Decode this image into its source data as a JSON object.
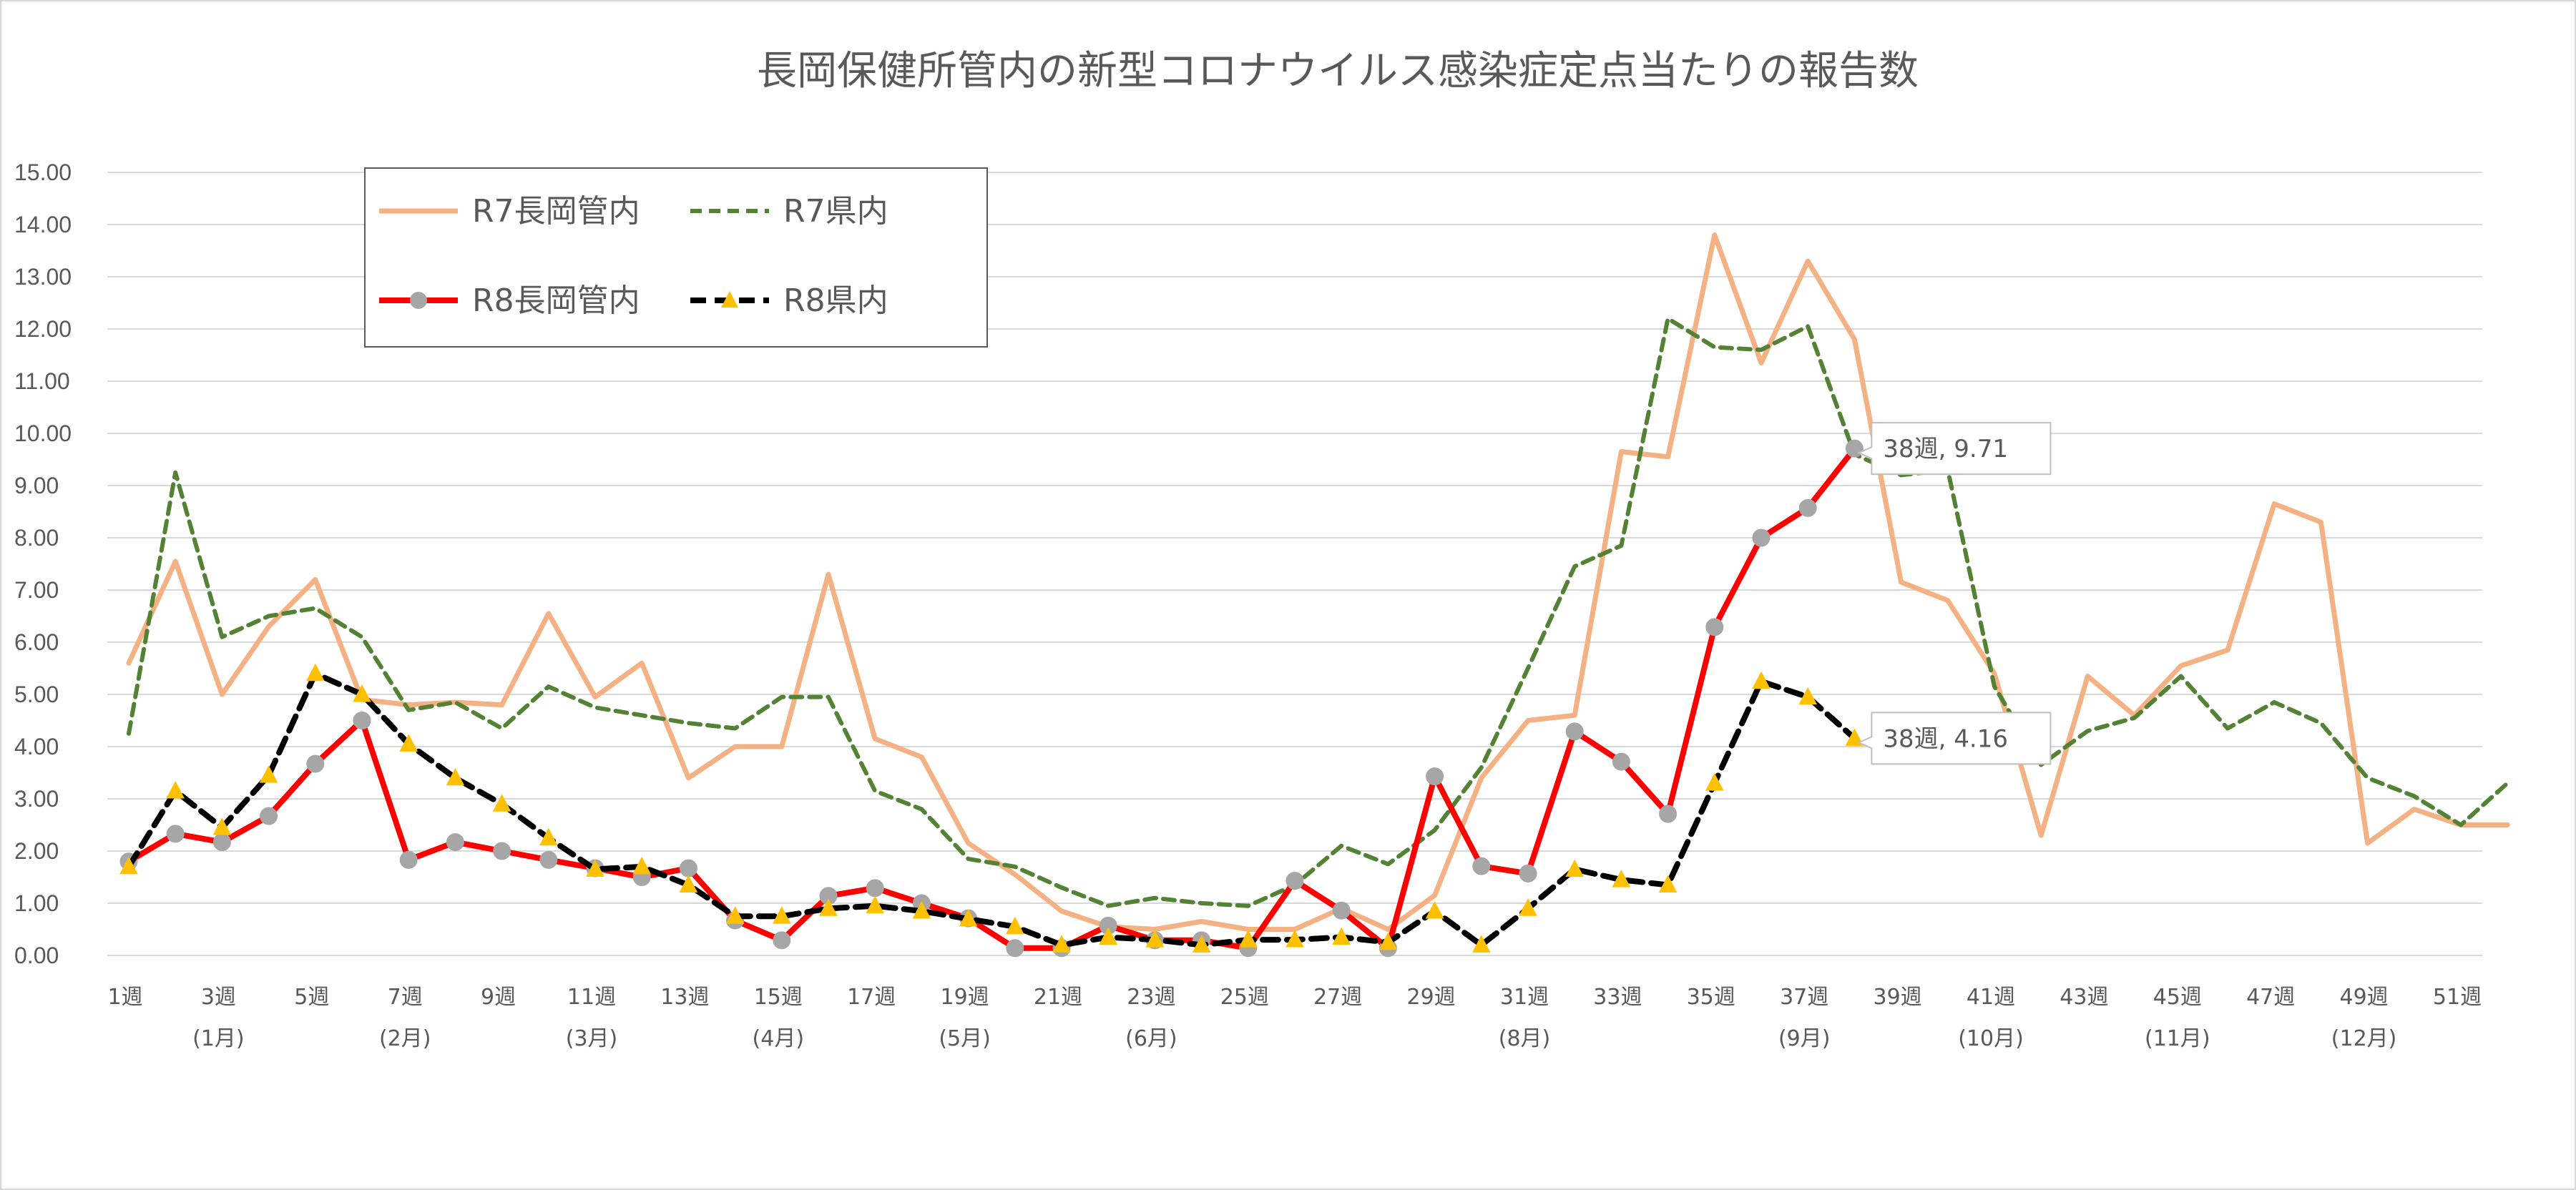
{
  "chart_data": {
    "type": "line",
    "title": "長岡保健所管内の新型コロナウイルス感染症定点当たりの報告数",
    "xlabel": "",
    "ylabel": "",
    "ylim": [
      0,
      15
    ],
    "y_ticks": [
      "0.00",
      "1.00",
      "2.00",
      "3.00",
      "4.00",
      "5.00",
      "6.00",
      "7.00",
      "8.00",
      "9.00",
      "10.00",
      "11.00",
      "12.00",
      "13.00",
      "14.00",
      "15.00"
    ],
    "x_weeks": [
      1,
      2,
      3,
      4,
      5,
      6,
      7,
      8,
      9,
      10,
      11,
      12,
      13,
      14,
      15,
      16,
      17,
      18,
      19,
      20,
      21,
      22,
      23,
      24,
      25,
      26,
      27,
      28,
      29,
      30,
      31,
      32,
      33,
      34,
      35,
      36,
      37,
      38,
      39,
      40,
      41,
      42,
      43,
      44,
      45,
      46,
      47,
      48,
      49,
      50,
      51,
      52
    ],
    "x_tick_labels": [
      "1週",
      "3週",
      "5週",
      "7週",
      "9週",
      "11週",
      "13週",
      "15週",
      "17週",
      "19週",
      "21週",
      "23週",
      "25週",
      "27週",
      "29週",
      "31週",
      "33週",
      "35週",
      "37週",
      "39週",
      "41週",
      "43週",
      "45週",
      "47週",
      "49週",
      "51週"
    ],
    "month_labels": [
      {
        "week": 3,
        "text": "(1月)"
      },
      {
        "week": 7,
        "text": "(2月)"
      },
      {
        "week": 11,
        "text": "(3月)"
      },
      {
        "week": 15,
        "text": "(4月)"
      },
      {
        "week": 19,
        "text": "(5月)"
      },
      {
        "week": 23,
        "text": "(6月)"
      },
      {
        "week": 31,
        "text": "(8月)"
      },
      {
        "week": 37,
        "text": "(9月)"
      },
      {
        "week": 41,
        "text": "(10月)"
      },
      {
        "week": 45,
        "text": "(11月)"
      },
      {
        "week": 49,
        "text": "(12月)"
      }
    ],
    "grid": true,
    "legend_position": "top-left",
    "series": [
      {
        "name": "R7長岡管内",
        "color": "#F4B183",
        "dash": "solid",
        "marker": "none",
        "values": [
          5.6,
          7.55,
          5.0,
          6.3,
          7.2,
          4.9,
          4.8,
          4.85,
          4.8,
          6.55,
          4.95,
          5.6,
          3.4,
          4.0,
          4.0,
          7.3,
          4.15,
          3.8,
          2.15,
          1.55,
          0.85,
          0.55,
          0.5,
          0.65,
          0.5,
          0.5,
          0.9,
          0.5,
          1.15,
          3.4,
          4.5,
          4.6,
          9.65,
          9.55,
          13.8,
          11.35,
          13.3,
          11.8,
          7.15,
          6.8,
          5.4,
          2.3,
          5.35,
          4.6,
          5.55,
          5.85,
          8.65,
          8.3,
          2.15,
          2.8,
          2.5,
          2.5
        ]
      },
      {
        "name": "R7県内",
        "color": "#548235",
        "dash": "dashed",
        "marker": "none",
        "values": [
          4.25,
          9.25,
          6.1,
          6.5,
          6.65,
          6.1,
          4.7,
          4.85,
          4.35,
          5.15,
          4.75,
          4.6,
          4.45,
          4.35,
          4.95,
          4.95,
          3.15,
          2.8,
          1.85,
          1.7,
          1.3,
          0.95,
          1.1,
          1.0,
          0.95,
          1.35,
          2.1,
          1.75,
          2.4,
          3.6,
          5.5,
          7.45,
          7.85,
          12.2,
          11.65,
          11.6,
          12.05,
          9.6,
          9.2,
          9.3,
          5.15,
          3.65,
          4.3,
          4.55,
          5.35,
          4.35,
          4.85,
          4.45,
          3.4,
          3.05,
          2.5,
          3.3
        ]
      },
      {
        "name": "R8長岡管内",
        "color": "#FF0000",
        "dash": "solid",
        "marker": "circle",
        "values": [
          1.8,
          2.33,
          2.17,
          2.67,
          3.67,
          4.5,
          1.83,
          2.17,
          2.0,
          1.83,
          1.67,
          1.5,
          1.67,
          0.67,
          0.29,
          1.14,
          1.29,
          1.0,
          0.71,
          0.14,
          0.14,
          0.57,
          0.29,
          0.29,
          0.14,
          1.43,
          0.86,
          0.14,
          3.43,
          1.71,
          1.57,
          4.29,
          3.71,
          2.71,
          6.29,
          8.0,
          8.57,
          9.71
        ]
      },
      {
        "name": "R8県内",
        "color": "#000000",
        "dash": "dashed",
        "marker": "triangle",
        "values": [
          1.7,
          3.15,
          2.45,
          3.45,
          5.4,
          5.0,
          4.05,
          3.4,
          2.9,
          2.25,
          1.65,
          1.7,
          1.35,
          0.75,
          0.75,
          0.9,
          0.95,
          0.85,
          0.7,
          0.55,
          0.2,
          0.35,
          0.3,
          0.2,
          0.3,
          0.3,
          0.35,
          0.25,
          0.85,
          0.2,
          0.9,
          1.65,
          1.45,
          1.35,
          3.3,
          5.25,
          4.95,
          4.16
        ]
      }
    ],
    "annotations": [
      {
        "series": "R8長岡管内",
        "week": 38,
        "text": "38週, 9.71"
      },
      {
        "series": "R8県内",
        "week": 38,
        "text": "38週, 4.16"
      }
    ]
  }
}
